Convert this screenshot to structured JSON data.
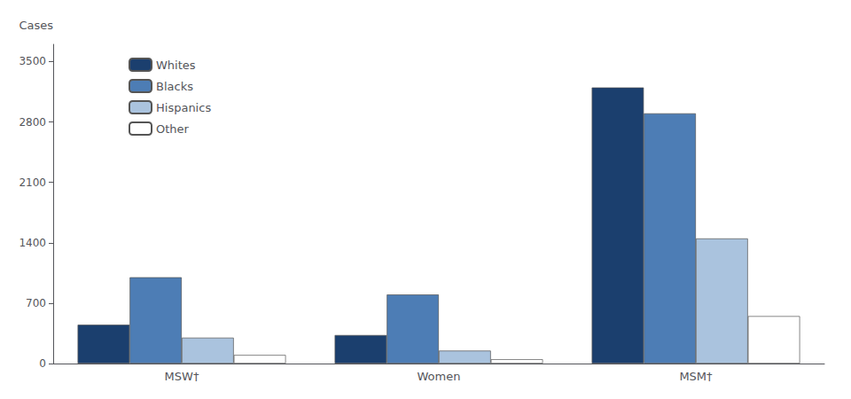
{
  "chart_data": {
    "type": "bar",
    "ylabel": "Cases",
    "categories": [
      "MSW†",
      "Women",
      "MSM†"
    ],
    "series": [
      {
        "name": "Whites",
        "color": "#1b3f6e",
        "values": [
          450,
          330,
          3200
        ]
      },
      {
        "name": "Blacks",
        "color": "#4d7db5",
        "values": [
          1000,
          800,
          2900
        ]
      },
      {
        "name": "Hispanics",
        "color": "#aac3de",
        "values": [
          300,
          150,
          1450
        ]
      },
      {
        "name": "Other",
        "color": "#ffffff",
        "values": [
          100,
          50,
          550
        ]
      }
    ],
    "ylim": [
      0,
      3700
    ],
    "yticks": [
      0,
      700,
      1400,
      2100,
      2800,
      3500
    ],
    "grid": false,
    "legend": "upper left"
  }
}
